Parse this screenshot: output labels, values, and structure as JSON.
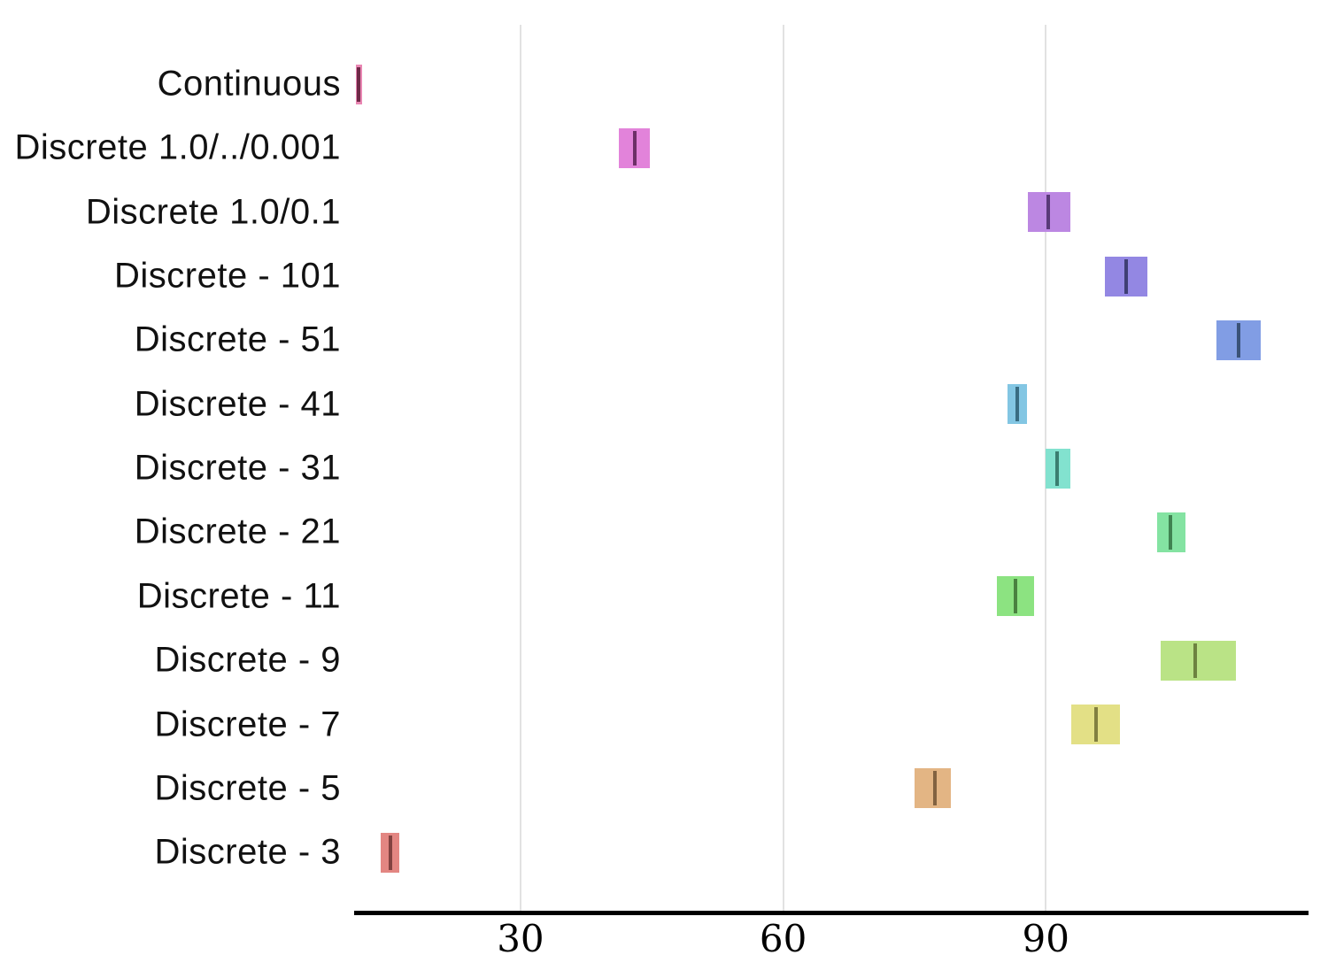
{
  "figure": {
    "background_color": "#ffffff",
    "axis_color": "#000000",
    "grid_color": "#e2e2e2"
  },
  "chart_data": {
    "type": "bar",
    "subtype": "horizontal range boxes with median tick (boxplot-style summary)",
    "title": "",
    "xlabel": "",
    "ylabel": "",
    "xlim": [
      11.2,
      119.8
    ],
    "xtick_labels": [
      "30",
      "60",
      "90"
    ],
    "xtick_values": [
      30,
      60,
      90
    ],
    "grid": {
      "axis": "x",
      "on": true,
      "position": "verticals at 30/60/90"
    },
    "legend": "none",
    "categories": [
      "Continuous",
      "Discrete 1.0/../0.001",
      "Discrete 1.0/0.1",
      "Discrete - 101",
      "Discrete - 51",
      "Discrete - 41",
      "Discrete - 31",
      "Discrete - 21",
      "Discrete - 11",
      "Discrete - 9",
      "Discrete - 7",
      "Discrete - 5",
      "Discrete - 3"
    ],
    "series": [
      {
        "label": "Continuous",
        "low": 11.2,
        "median": 11.5,
        "high": 11.9,
        "box_color": "#e987b3",
        "median_color": "#6f2948"
      },
      {
        "label": "Discrete 1.0/../0.001",
        "low": 41.2,
        "median": 43.1,
        "high": 44.8,
        "box_color": "#e283da",
        "median_color": "#6d2f67"
      },
      {
        "label": "Discrete 1.0/0.1",
        "low": 87.9,
        "median": 90.3,
        "high": 92.8,
        "box_color": "#bc87e2",
        "median_color": "#5a3a78"
      },
      {
        "label": "Discrete - 101",
        "low": 96.7,
        "median": 99.2,
        "high": 101.6,
        "box_color": "#9387e3",
        "median_color": "#3f3f74"
      },
      {
        "label": "Discrete - 51",
        "low": 109.5,
        "median": 112.0,
        "high": 114.5,
        "box_color": "#819de4",
        "median_color": "#3a5278"
      },
      {
        "label": "Discrete - 41",
        "low": 85.6,
        "median": 86.7,
        "high": 87.8,
        "box_color": "#83c6e3",
        "median_color": "#396c82"
      },
      {
        "label": "Discrete - 31",
        "low": 90.0,
        "median": 91.3,
        "high": 92.8,
        "box_color": "#82e2cf",
        "median_color": "#3a7e70"
      },
      {
        "label": "Discrete - 21",
        "low": 102.7,
        "median": 104.2,
        "high": 105.9,
        "box_color": "#84e3a2",
        "median_color": "#408351"
      },
      {
        "label": "Discrete - 11",
        "low": 84.4,
        "median": 86.5,
        "high": 88.7,
        "box_color": "#8ce381",
        "median_color": "#4a8240"
      },
      {
        "label": "Discrete - 9",
        "low": 103.1,
        "median": 107.1,
        "high": 111.7,
        "box_color": "#bae386",
        "median_color": "#6d8240"
      },
      {
        "label": "Discrete - 7",
        "low": 92.9,
        "median": 95.7,
        "high": 98.5,
        "box_color": "#e3e086",
        "median_color": "#828040"
      },
      {
        "label": "Discrete - 5",
        "low": 75.0,
        "median": 77.3,
        "high": 79.2,
        "box_color": "#e3b584",
        "median_color": "#826241"
      },
      {
        "label": "Discrete - 3",
        "low": 14.0,
        "median": 15.1,
        "high": 16.2,
        "box_color": "#e38682",
        "median_color": "#824240"
      }
    ]
  }
}
